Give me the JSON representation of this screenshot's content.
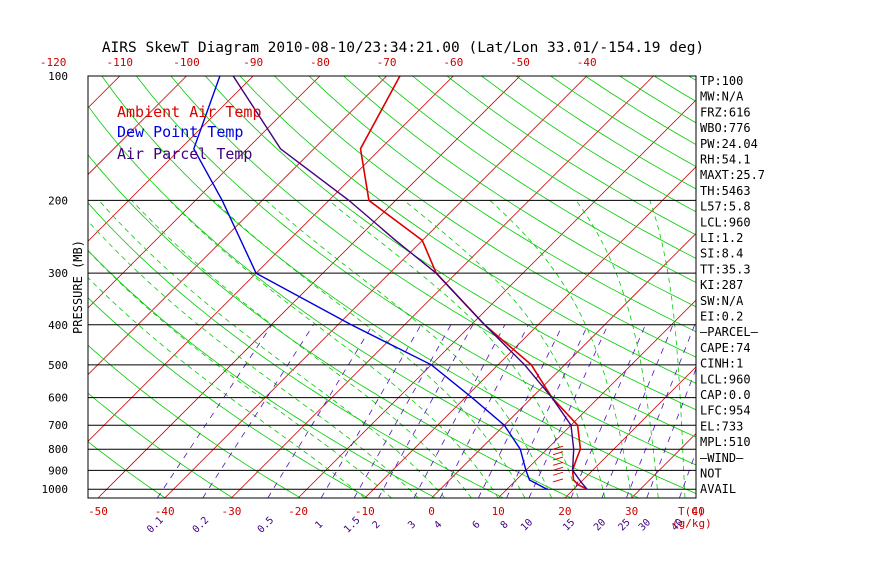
{
  "chart_data": {
    "type": "line",
    "title": "AIRS SkewT Diagram 2010-08-10/23:34:21.00 (Lat/Lon 33.01/-154.19 deg)",
    "ylabel": "PRESSURE (MB)",
    "x_unit_label": "T(C)",
    "mixing_ratio_unit_label": "(g/kg)",
    "y_scale": "log",
    "ylim": [
      1050,
      100
    ],
    "top_temperature_ticks": [
      "-120",
      "-110",
      "-100",
      "-90",
      "-80",
      "-70",
      "-60",
      "-50",
      "-40"
    ],
    "bottom_temperature_ticks": [
      "-50",
      "-40",
      "-30",
      "-20",
      "-10",
      "0",
      "10",
      "20",
      "30",
      "40"
    ],
    "pressure_ticks": [
      "100",
      "200",
      "300",
      "400",
      "500",
      "600",
      "700",
      "800",
      "900",
      "1000"
    ],
    "mixing_ratio_labels": [
      "0.1",
      "0.2",
      "0.5",
      "1",
      "1.5",
      "2",
      "3",
      "4",
      "6",
      "8",
      "10",
      "15",
      "20",
      "25",
      "30",
      "40"
    ],
    "legend": [
      {
        "label": "Ambient Air Temp",
        "color": "#dd0000"
      },
      {
        "label": "Dew Point Temp",
        "color": "#0000dd"
      },
      {
        "label": "Air Parcel Temp",
        "color": "#400080"
      }
    ],
    "series": [
      {
        "name": "Ambient Air Temp",
        "color": "#dd0000",
        "points": [
          [
            1000,
            22
          ],
          [
            975,
            20
          ],
          [
            950,
            18.6
          ],
          [
            900,
            17
          ],
          [
            850,
            16
          ],
          [
            800,
            15
          ],
          [
            700,
            11
          ],
          [
            600,
            3
          ],
          [
            500,
            -5
          ],
          [
            400,
            -18
          ],
          [
            300,
            -33
          ],
          [
            250,
            -40
          ],
          [
            200,
            -54
          ],
          [
            150,
            -63
          ],
          [
            100,
            -68
          ]
        ]
      },
      {
        "name": "Dew Point Temp",
        "color": "#0000dd",
        "points": [
          [
            1000,
            16
          ],
          [
            950,
            12
          ],
          [
            900,
            10
          ],
          [
            800,
            6
          ],
          [
            700,
            0
          ],
          [
            600,
            -9
          ],
          [
            500,
            -20
          ],
          [
            400,
            -38
          ],
          [
            300,
            -60
          ],
          [
            200,
            -76
          ],
          [
            150,
            -88
          ],
          [
            100,
            -95
          ]
        ]
      },
      {
        "name": "Air Parcel Temp",
        "color": "#400080",
        "points": [
          [
            1000,
            22
          ],
          [
            960,
            20
          ],
          [
            900,
            17
          ],
          [
            800,
            14
          ],
          [
            700,
            10
          ],
          [
            600,
            3
          ],
          [
            500,
            -6
          ],
          [
            400,
            -18
          ],
          [
            300,
            -33
          ],
          [
            250,
            -44
          ],
          [
            200,
            -57
          ],
          [
            150,
            -75
          ],
          [
            100,
            -93
          ]
        ]
      }
    ],
    "wind": [
      [
        960,
        4,
        135
      ],
      [
        925,
        5,
        140
      ],
      [
        900,
        6,
        150
      ],
      [
        875,
        7,
        160
      ],
      [
        850,
        7,
        170
      ],
      [
        825,
        8,
        175
      ],
      [
        800,
        8,
        180
      ]
    ],
    "indices": [
      "TP:100",
      "MW:N/A",
      "FRZ:616",
      "WBO:776",
      "PW:24.04",
      "RH:54.1",
      "MAXT:25.7",
      "TH:5463",
      "L57:5.8",
      "LCL:960",
      "LI:1.2",
      "SI:8.4",
      "TT:35.3",
      "KI:287",
      "SW:N/A",
      "EI:0.2",
      "—PARCEL—",
      "CAPE:74",
      "CINH:1",
      "LCL:960",
      "CAP:0.0",
      "LFC:954",
      "EL:733",
      "MPL:510",
      "—WIND—",
      "NOT",
      "AVAIL"
    ],
    "grid": true
  },
  "colors": {
    "isotherm": "#cc0000",
    "dry_adiabat": "#00cc00",
    "moist_adiabat": "#00cc00",
    "mixing_ratio": "#5010c0",
    "isobar": "#000000",
    "axis_text": "#cc0000",
    "mixing_label": "#400080"
  }
}
